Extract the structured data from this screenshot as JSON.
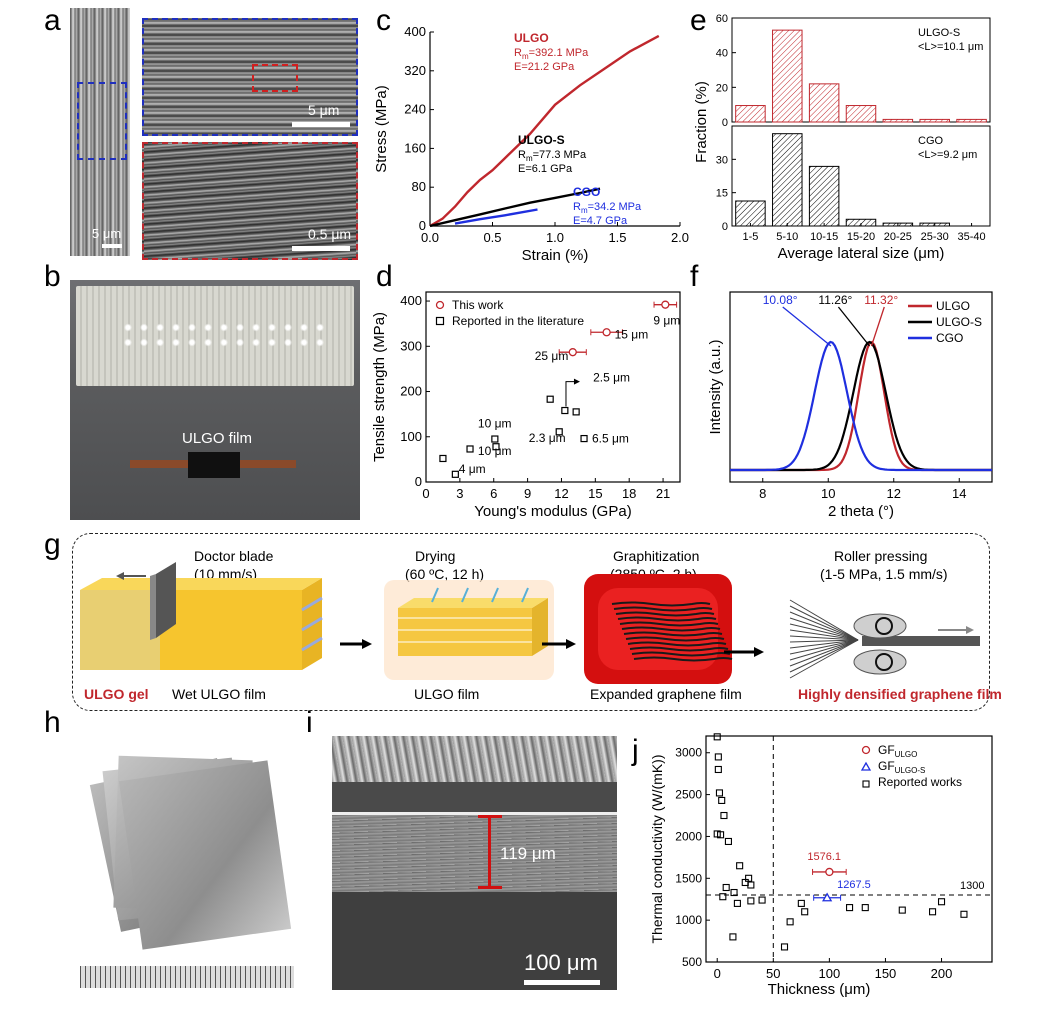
{
  "panel_labels": {
    "a": "a",
    "b": "b",
    "c": "c",
    "d": "d",
    "e": "e",
    "f": "f",
    "g": "g",
    "h": "h",
    "i": "i",
    "j": "j"
  },
  "panel_a": {
    "scale_left": "5 μm",
    "scale_top": "5 μm",
    "scale_bottom": "0.5 μm",
    "colors": {
      "blue_box": "#1f2fbf",
      "red_box": "#c0272d"
    }
  },
  "panel_b": {
    "film_label": "ULGO film"
  },
  "panel_g": {
    "steps": [
      {
        "title": "Doctor blade",
        "cond": "(10 mm/s)"
      },
      {
        "title": "Drying",
        "cond": "(60 ºC, 12 h)"
      },
      {
        "title": "Graphitization",
        "cond": "(2850 ºC, 2 h)"
      },
      {
        "title": "Roller pressing",
        "cond": "(1-5 MPa, 1.5 mm/s)"
      }
    ],
    "captions": {
      "gel": "ULGO gel",
      "wet": "Wet ULGO film",
      "film": "ULGO film",
      "expanded": "Expanded graphene film",
      "dense": "Highly densified graphene film"
    }
  },
  "panel_i": {
    "thickness_label": "119 μm",
    "scale": "100 μm"
  },
  "chart_data": [
    {
      "panel": "c",
      "type": "line",
      "xlabel": "Strain (%)",
      "ylabel": "Stress (MPa)",
      "xlim": [
        0,
        2.0
      ],
      "ylim": [
        0,
        400
      ],
      "xticks": [
        "0.0",
        "0.5",
        "1.0",
        "1.5",
        "2.0"
      ],
      "yticks": [
        "0",
        "80",
        "160",
        "240",
        "320",
        "400"
      ],
      "series": [
        {
          "name": "ULGO",
          "Rm": "R",
          "Rm_sub": "m",
          "Rm_val": "=392.1 MPa",
          "E": "E=21.2 GPa",
          "color": "#c0272d",
          "x": [
            0,
            0.1,
            0.2,
            0.3,
            0.4,
            0.5,
            0.6,
            0.8,
            1.0,
            1.2,
            1.4,
            1.6,
            1.83
          ],
          "y": [
            0,
            15,
            40,
            70,
            95,
            115,
            140,
            190,
            250,
            290,
            325,
            360,
            392
          ]
        },
        {
          "name": "ULGO-S",
          "Rm": "R",
          "Rm_sub": "m",
          "Rm_val": "=77.3 MPa",
          "E": "E=6.1 GPa",
          "color": "#000000",
          "x": [
            0,
            0.2,
            0.4,
            0.6,
            0.8,
            1.0,
            1.2,
            1.36
          ],
          "y": [
            0,
            12,
            24,
            36,
            48,
            58,
            68,
            77
          ]
        },
        {
          "name": "CGO",
          "Rm": "R",
          "Rm_sub": "m",
          "Rm_val": "=34.2 MPa",
          "E": "E=4.7 GPa",
          "color": "#1f2fdf",
          "x": [
            0.2,
            0.4,
            0.6,
            0.86
          ],
          "y": [
            5,
            14,
            22,
            34
          ]
        }
      ]
    },
    {
      "panel": "d",
      "type": "scatter",
      "xlabel": "Young's modulus (GPa)",
      "ylabel": "Tensile strength (MPa)",
      "xlim": [
        0,
        22.5
      ],
      "ylim": [
        0,
        420
      ],
      "xticks": [
        "0",
        "3",
        "6",
        "9",
        "12",
        "15",
        "18",
        "21"
      ],
      "yticks": [
        "0",
        "100",
        "200",
        "300",
        "400"
      ],
      "legend": [
        "This work",
        "Reported in the literature"
      ],
      "this_work": [
        {
          "x": 21.2,
          "y": 392,
          "xerr": 1.0,
          "label": "9 μm"
        },
        {
          "x": 16.0,
          "y": 331,
          "xerr": 1.4,
          "label": "15 μm"
        },
        {
          "x": 13.0,
          "y": 287,
          "xerr": 1.2,
          "label": "25 μm"
        }
      ],
      "literature": [
        {
          "x": 1.5,
          "y": 52
        },
        {
          "x": 2.6,
          "y": 17
        },
        {
          "x": 3.9,
          "y": 73
        },
        {
          "x": 6.1,
          "y": 95
        },
        {
          "x": 6.2,
          "y": 78
        },
        {
          "x": 11.0,
          "y": 183
        },
        {
          "x": 12.3,
          "y": 158
        },
        {
          "x": 13.3,
          "y": 155
        },
        {
          "x": 11.8,
          "y": 111
        },
        {
          "x": 14.0,
          "y": 96
        }
      ],
      "annotations": [
        "10 μm",
        "10 μm",
        "4 μm",
        "2.3 μm",
        "6.5 μm",
        "2.5 μm"
      ]
    },
    {
      "panel": "e",
      "type": "bar",
      "xlabel": "Average lateral size (μm)",
      "ylabel": "Fraction (%)",
      "categories": [
        "1-5",
        "5-10",
        "10-15",
        "15-20",
        "20-25",
        "25-30",
        "35-40"
      ],
      "series": [
        {
          "name": "ULGO-S",
          "note": "<L>=10.1 μm",
          "values": [
            9.5,
            53,
            22,
            9.5,
            1.5,
            1.5,
            1.5
          ],
          "ylim": [
            0,
            60
          ],
          "yticks": [
            "0",
            "20",
            "40",
            "60"
          ],
          "color": "#c0272d"
        },
        {
          "name": "CGO",
          "note": "<L>=9.2 μm",
          "values": [
            13,
            48,
            31,
            3.5,
            1.5,
            1.5,
            0
          ],
          "ylim": [
            0,
            52
          ],
          "yticks": [
            "0",
            "15",
            "30",
            "45"
          ],
          "color": "#000000"
        }
      ]
    },
    {
      "panel": "f",
      "type": "line",
      "xlabel": "2 theta (°)",
      "ylabel": "Intensity (a.u.)",
      "xlim": [
        7,
        15
      ],
      "xticks": [
        "8",
        "10",
        "12",
        "14"
      ],
      "peaks": {
        "CGO": "10.08°",
        "ULGO-S": "11.26°",
        "ULGO": "11.32°"
      },
      "series": [
        {
          "name": "ULGO",
          "color": "#c0272d",
          "center": 11.32,
          "width": 0.55
        },
        {
          "name": "ULGO-S",
          "color": "#000000",
          "center": 11.26,
          "width": 0.7
        },
        {
          "name": "CGO",
          "color": "#1f2fdf",
          "center": 10.08,
          "width": 0.7
        }
      ]
    },
    {
      "panel": "j",
      "type": "scatter",
      "xlabel": "Thickness (μm)",
      "ylabel": "Thermal conductivity (W/(mK))",
      "xlim": [
        -10,
        245
      ],
      "ylim": [
        500,
        3200
      ],
      "xticks": [
        "0",
        "50",
        "100",
        "150",
        "200"
      ],
      "yticks": [
        "500",
        "1000",
        "1500",
        "2000",
        "2500",
        "3000"
      ],
      "legend": [
        {
          "main": "GF",
          "sub": "ULGO"
        },
        {
          "main": "GF",
          "sub": "ULGO-S"
        },
        {
          "main": "Reported works",
          "sub": ""
        }
      ],
      "gf_ulgo": {
        "x": 100,
        "y": 1576.1,
        "xerr": 15,
        "label": "1576.1"
      },
      "gf_ulgo_s": {
        "x": 98,
        "y": 1267.5,
        "xerr": 12,
        "label": "1267.5"
      },
      "ref_line": {
        "y": 1300,
        "label": "1300"
      },
      "vline_x": 50,
      "reported": [
        {
          "x": 0,
          "y": 3190
        },
        {
          "x": 1,
          "y": 2950
        },
        {
          "x": 1,
          "y": 2800
        },
        {
          "x": 2,
          "y": 2520
        },
        {
          "x": 4,
          "y": 2430
        },
        {
          "x": 6,
          "y": 2250
        },
        {
          "x": 0,
          "y": 2030
        },
        {
          "x": 3,
          "y": 2020
        },
        {
          "x": 10,
          "y": 1940
        },
        {
          "x": 20,
          "y": 1650
        },
        {
          "x": 25,
          "y": 1450
        },
        {
          "x": 28,
          "y": 1500
        },
        {
          "x": 30,
          "y": 1420
        },
        {
          "x": 5,
          "y": 1280
        },
        {
          "x": 8,
          "y": 1390
        },
        {
          "x": 15,
          "y": 1330
        },
        {
          "x": 18,
          "y": 1200
        },
        {
          "x": 30,
          "y": 1230
        },
        {
          "x": 40,
          "y": 1240
        },
        {
          "x": 14,
          "y": 800
        },
        {
          "x": 60,
          "y": 680
        },
        {
          "x": 65,
          "y": 980
        },
        {
          "x": 75,
          "y": 1200
        },
        {
          "x": 78,
          "y": 1100
        },
        {
          "x": 118,
          "y": 1150
        },
        {
          "x": 132,
          "y": 1150
        },
        {
          "x": 165,
          "y": 1120
        },
        {
          "x": 192,
          "y": 1100
        },
        {
          "x": 200,
          "y": 1220
        },
        {
          "x": 220,
          "y": 1070
        }
      ]
    }
  ]
}
